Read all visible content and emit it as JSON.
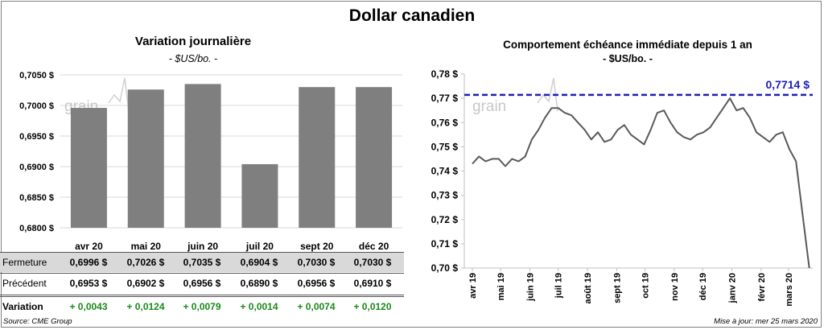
{
  "page": {
    "title": "Dollar canadien",
    "source": "Source: CME Group",
    "updated": "Mise à jour: mer 25 mars 2020",
    "logo": "grain"
  },
  "left": {
    "title": "Variation  journalière",
    "unit": "- $US/bo. -",
    "table": {
      "rows": [
        {
          "label": "Fermeture",
          "values": [
            "0,6996  $",
            "0,7026  $",
            "0,7035  $",
            "0,6904  $",
            "0,7030  $",
            "0,7030  $"
          ]
        },
        {
          "label": "Précédent",
          "values": [
            "0,6953  $",
            "0,6902  $",
            "0,6956  $",
            "0,6890  $",
            "0,6956  $",
            "0,6910  $"
          ]
        },
        {
          "label": "Variation",
          "values": [
            "+ 0,0043",
            "+ 0,0124",
            "+ 0,0079",
            "+ 0,0014",
            "+ 0,0074",
            "+ 0,0120"
          ]
        }
      ]
    }
  },
  "right": {
    "title": "Comportement échéance immédiate depuis 1 an",
    "unit": "- $US/bo. -",
    "reference_label": "0,7714  $"
  },
  "colors": {
    "bar": "#7f7f7f",
    "line": "#595959",
    "reference": "#1f1fb4",
    "positive": "#1a8a1a",
    "table_shade": "#d9d9d9"
  },
  "chart_data": [
    {
      "type": "bar",
      "categories": [
        "avr 20",
        "mai 20",
        "juin 20",
        "juil 20",
        "sept 20",
        "déc 20"
      ],
      "values": [
        0.6996,
        0.7026,
        0.7035,
        0.6904,
        0.703,
        0.703
      ],
      "ylim": [
        0.68,
        0.705
      ],
      "yticks": [
        "0,6800 $",
        "0,6850 $",
        "0,6900 $",
        "0,6950 $",
        "0,7000 $",
        "0,7050 $"
      ],
      "grid": true
    },
    {
      "type": "line",
      "x_labels": [
        "avr 19",
        "mai 19",
        "juin 19",
        "juil 19",
        "août 19",
        "sept 19",
        "oct 19",
        "nov 19",
        "déc 19",
        "janv 20",
        "févr 20",
        "mars 20"
      ],
      "ylim": [
        0.7,
        0.78
      ],
      "yticks": [
        "0,70 $",
        "0,71 $",
        "0,72 $",
        "0,73 $",
        "0,74 $",
        "0,75 $",
        "0,76 $",
        "0,77 $",
        "0,78 $"
      ],
      "reference_line": 0.7714,
      "grid": false,
      "series": [
        {
          "x": [
            "2019-04-01",
            "2019-04-08",
            "2019-04-15",
            "2019-04-22",
            "2019-04-29",
            "2019-05-06",
            "2019-05-13",
            "2019-05-20",
            "2019-05-27",
            "2019-06-03",
            "2019-06-10",
            "2019-06-17",
            "2019-06-24",
            "2019-07-01",
            "2019-07-08",
            "2019-07-15",
            "2019-07-22",
            "2019-07-29",
            "2019-08-05",
            "2019-08-12",
            "2019-08-19",
            "2019-08-26",
            "2019-09-02",
            "2019-09-09",
            "2019-09-16",
            "2019-09-23",
            "2019-09-30",
            "2019-10-07",
            "2019-10-14",
            "2019-10-21",
            "2019-10-28",
            "2019-11-04",
            "2019-11-11",
            "2019-11-18",
            "2019-11-25",
            "2019-12-02",
            "2019-12-09",
            "2019-12-16",
            "2019-12-23",
            "2019-12-30",
            "2020-01-06",
            "2020-01-13",
            "2020-01-20",
            "2020-01-27",
            "2020-02-03",
            "2020-02-10",
            "2020-02-17",
            "2020-02-24",
            "2020-03-02",
            "2020-03-09",
            "2020-03-16",
            "2020-03-23"
          ],
          "y": [
            0.743,
            0.746,
            0.744,
            0.745,
            0.745,
            0.742,
            0.745,
            0.744,
            0.746,
            0.753,
            0.757,
            0.762,
            0.766,
            0.766,
            0.764,
            0.763,
            0.76,
            0.757,
            0.753,
            0.756,
            0.752,
            0.753,
            0.757,
            0.759,
            0.755,
            0.753,
            0.751,
            0.757,
            0.764,
            0.765,
            0.76,
            0.756,
            0.754,
            0.753,
            0.755,
            0.756,
            0.758,
            0.762,
            0.766,
            0.77,
            0.765,
            0.766,
            0.762,
            0.756,
            0.754,
            0.752,
            0.755,
            0.756,
            0.749,
            0.744,
            0.722,
            0.7
          ]
        }
      ]
    }
  ]
}
